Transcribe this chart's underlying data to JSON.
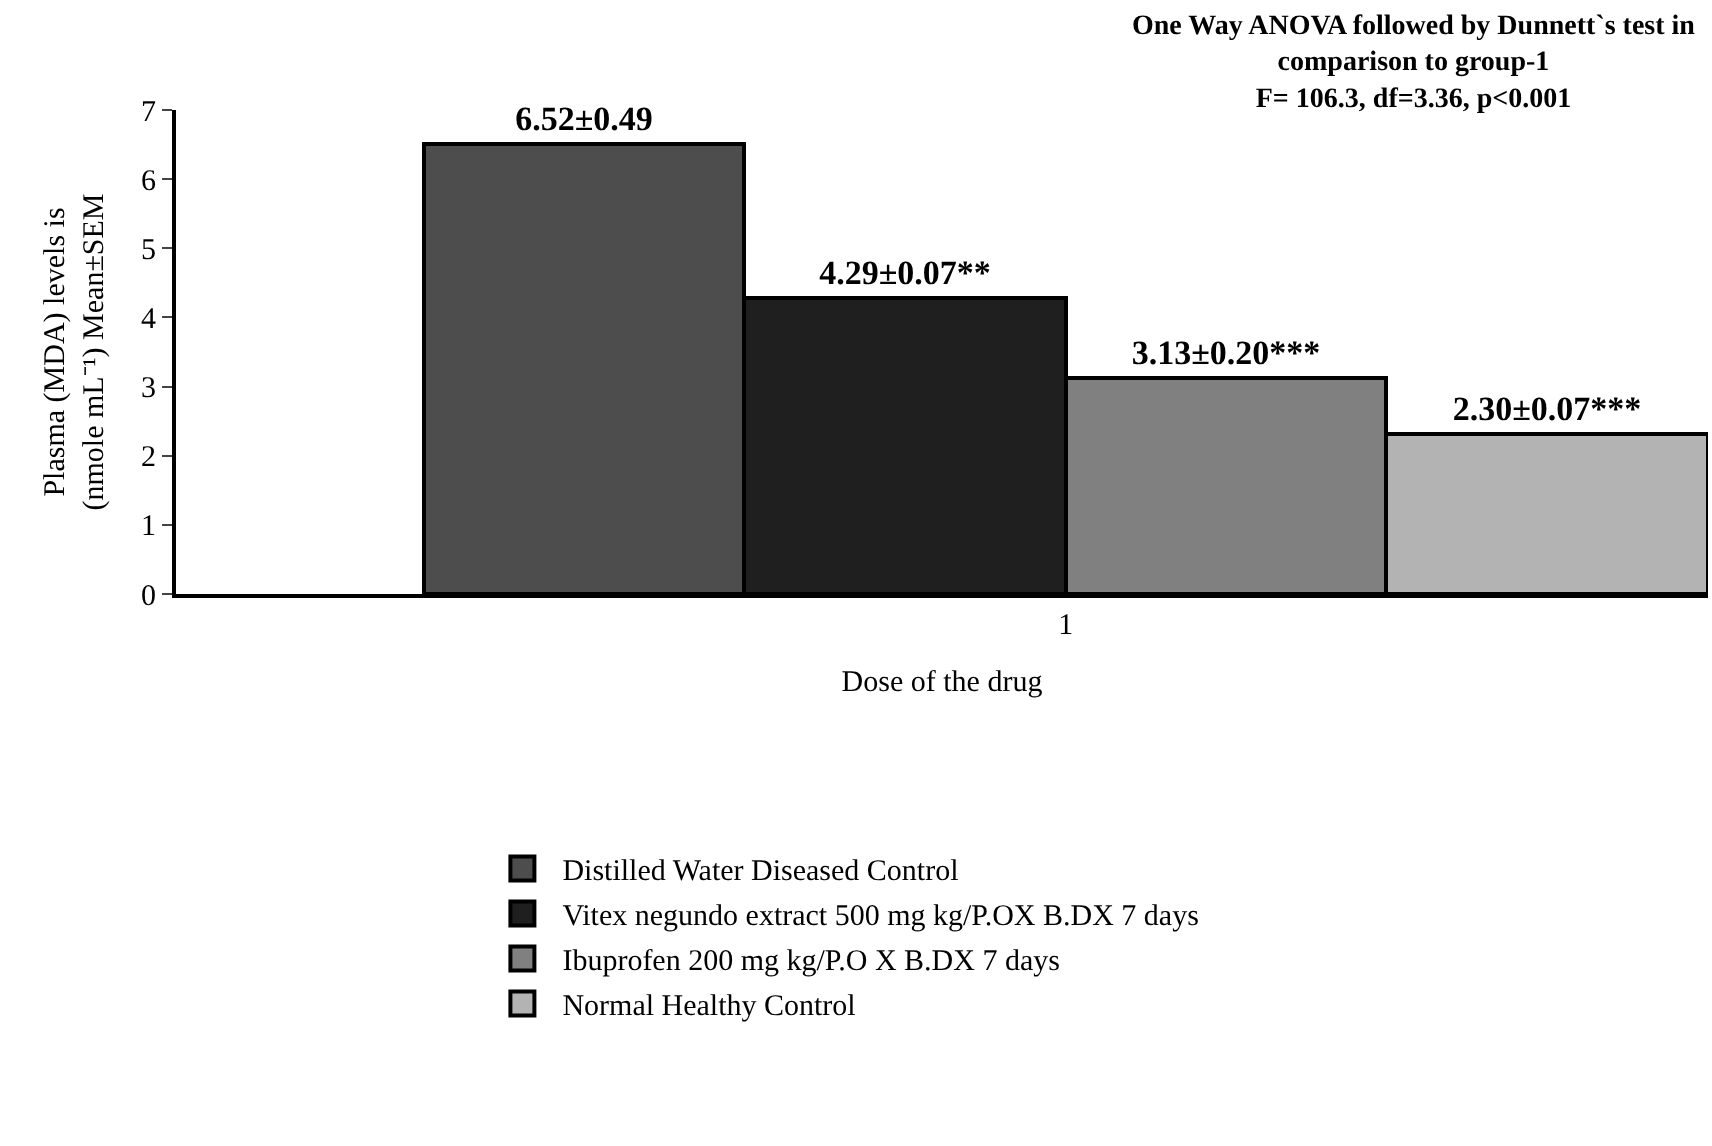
{
  "chart_data": {
    "type": "bar",
    "xlabel": "Dose of the drug",
    "ylabel": "Plasma (MDA) levels is\n(nmole mL⁻¹) Mean±SEM",
    "categories": [
      "1"
    ],
    "series": [
      {
        "name": "Distilled Water Diseased Control",
        "color": "#4d4d4d",
        "values": [
          6.52
        ],
        "value_labels": [
          "6.52±0.49"
        ]
      },
      {
        "name": "Vitex negundo extract 500 mg kg/P.OX B.DX 7 days",
        "color": "#1f1f1f",
        "values": [
          4.29
        ],
        "value_labels": [
          "4.29±0.07**"
        ]
      },
      {
        "name": "Ibuprofen 200 mg kg/P.O X B.DX 7 days",
        "color": "#808080",
        "values": [
          3.13
        ],
        "value_labels": [
          "3.13±0.20***"
        ]
      },
      {
        "name": "Normal Healthy Control",
        "color": "#b3b3b3",
        "values": [
          2.3
        ],
        "value_labels": [
          "2.30±0.07***"
        ]
      }
    ],
    "ylim": [
      0,
      7
    ],
    "yticks": [
      0,
      1,
      2,
      3,
      4,
      5,
      6,
      7
    ],
    "legend": "bottom",
    "annotations": [
      "One Way ANOVA followed by Dunnett`s test in\ncomparison to group-1\nF= 106.3, df=3.36, p<0.001"
    ]
  }
}
